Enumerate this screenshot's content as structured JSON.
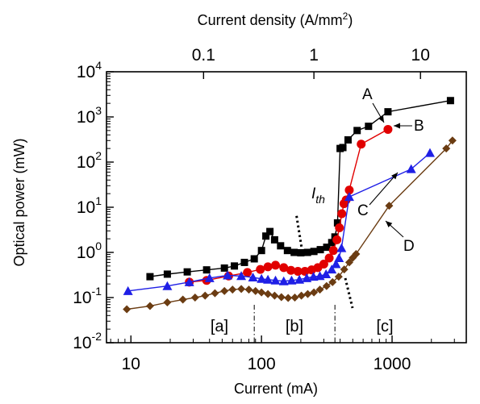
{
  "chart_data": {
    "type": "line",
    "xlabel": "Current (mA)",
    "ylabel": "Optical power (mW)",
    "top_xlabel_prefix": "Current density (A/mm",
    "top_xlabel_sup": "2",
    "top_xlabel_suffix": ")",
    "x_scale": "log",
    "y_scale": "log",
    "xlim": [
      6.5,
      3700
    ],
    "ylim": [
      0.01,
      10000
    ],
    "x_ticks": [
      {
        "value": 10,
        "label": "10"
      },
      {
        "value": 100,
        "label": "100"
      },
      {
        "value": 1000,
        "label": "1000"
      }
    ],
    "y_ticks": [
      {
        "value": 0.01,
        "base": "10",
        "exp": "-2"
      },
      {
        "value": 0.1,
        "base": "10",
        "exp": "-1"
      },
      {
        "value": 1,
        "base": "10",
        "exp": "0"
      },
      {
        "value": 10,
        "base": "10",
        "exp": "1"
      },
      {
        "value": 100,
        "base": "10",
        "exp": "2"
      },
      {
        "value": 1000,
        "base": "10",
        "exp": "3"
      },
      {
        "value": 10000,
        "base": "10",
        "exp": "4"
      }
    ],
    "top_ticks": [
      {
        "current_mA": 36,
        "label": "0.1"
      },
      {
        "current_mA": 252,
        "label": "1"
      },
      {
        "current_mA": 1650,
        "label": "10"
      }
    ],
    "series": [
      {
        "name": "A",
        "color": "#000000",
        "marker": "square",
        "x": [
          14,
          19,
          27,
          38,
          52,
          62,
          74,
          88,
          100,
          108,
          116,
          126,
          140,
          158,
          178,
          200,
          225,
          252,
          282,
          316,
          345,
          365,
          382,
          400,
          420,
          460,
          540,
          660,
          930,
          2800
        ],
        "y": [
          0.29,
          0.33,
          0.37,
          0.41,
          0.45,
          0.5,
          0.6,
          0.72,
          1.1,
          2.3,
          2.9,
          1.9,
          1.4,
          1.1,
          1.0,
          0.98,
          1.0,
          1.05,
          1.15,
          1.3,
          1.65,
          2.2,
          4.5,
          200,
          210,
          310,
          500,
          620,
          1300,
          2300
        ]
      },
      {
        "name": "B",
        "color": "#e10000",
        "marker": "circle",
        "x": [
          28,
          38,
          56,
          78,
          98,
          112,
          128,
          148,
          168,
          190,
          215,
          242,
          270,
          300,
          330,
          355,
          378,
          395,
          412,
          428,
          445,
          470,
          580,
          930
        ],
        "y": [
          0.22,
          0.24,
          0.3,
          0.36,
          0.42,
          0.48,
          0.52,
          0.46,
          0.4,
          0.38,
          0.38,
          0.41,
          0.46,
          0.55,
          0.75,
          1.1,
          1.9,
          3.5,
          7.2,
          12,
          14.5,
          24,
          250,
          530
        ]
      },
      {
        "name": "C",
        "color": "#1f1fe6",
        "marker": "triangle",
        "x": [
          9.5,
          19,
          28,
          40,
          55,
          70,
          86,
          100,
          112,
          128,
          148,
          170,
          195,
          222,
          250,
          280,
          312,
          345,
          372,
          392,
          410,
          470,
          1400,
          1950
        ],
        "y": [
          0.14,
          0.18,
          0.22,
          0.27,
          0.31,
          0.3,
          0.28,
          0.26,
          0.25,
          0.24,
          0.23,
          0.24,
          0.25,
          0.27,
          0.29,
          0.3,
          0.33,
          0.42,
          0.55,
          0.75,
          1.25,
          17,
          70,
          160
        ]
      },
      {
        "name": "D",
        "color": "#6b3c12",
        "marker": "diamond",
        "x": [
          9.3,
          14,
          19,
          25,
          31,
          37,
          44,
          52,
          60,
          70,
          80,
          90,
          100,
          112,
          126,
          142,
          160,
          180,
          202,
          226,
          252,
          280,
          315,
          350,
          390,
          430,
          470,
          500,
          530,
          950,
          2600,
          2900
        ],
        "y": [
          0.055,
          0.065,
          0.078,
          0.09,
          0.1,
          0.11,
          0.125,
          0.14,
          0.15,
          0.155,
          0.15,
          0.14,
          0.13,
          0.12,
          0.11,
          0.102,
          0.098,
          0.1,
          0.11,
          0.12,
          0.13,
          0.15,
          0.18,
          0.22,
          0.29,
          0.42,
          0.6,
          0.76,
          0.92,
          10.8,
          200,
          300
        ]
      }
    ],
    "annotations": {
      "A": {
        "label": "A"
      },
      "B": {
        "label": "B"
      },
      "C": {
        "label": "C"
      },
      "D": {
        "label": "D"
      },
      "ith": {
        "label": "I",
        "sub": "th",
        "line_from": [
          205,
          2.4
        ],
        "line_to": [
          500,
          0.05
        ]
      },
      "regions": [
        {
          "label": "[a]"
        },
        {
          "label": "[b]"
        },
        {
          "label": "[c]"
        }
      ],
      "region_boundaries_mA": [
        88,
        365
      ]
    }
  }
}
